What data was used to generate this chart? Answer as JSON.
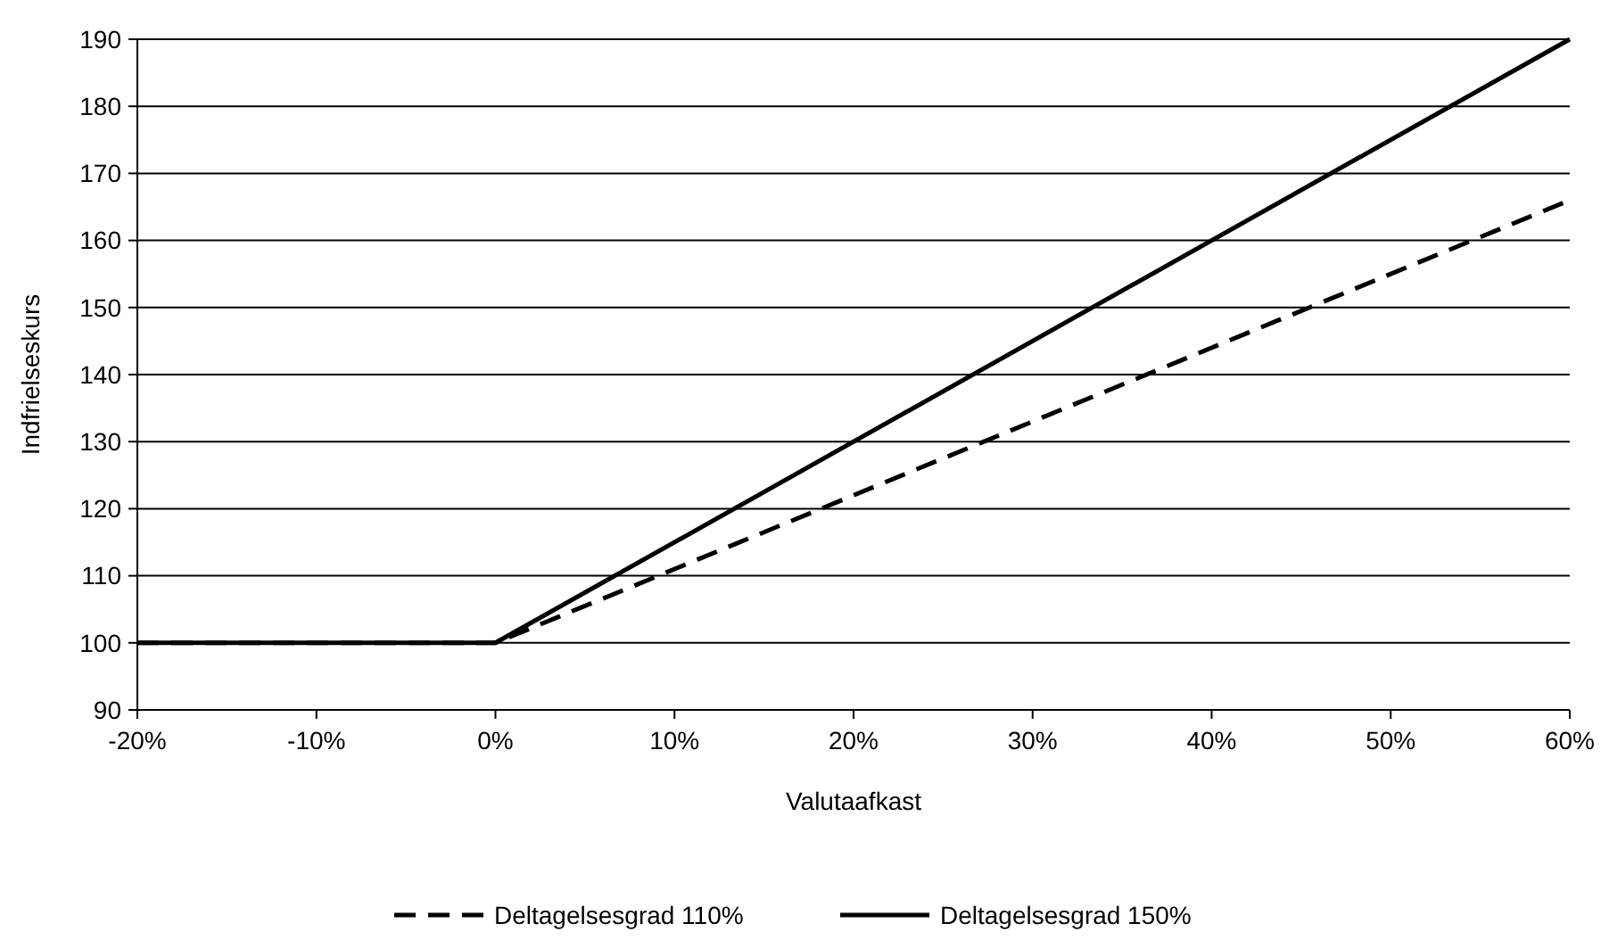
{
  "chart_data": {
    "type": "line",
    "xlabel": "Valutaafkast",
    "ylabel": "Indfrielseskurs",
    "x": [
      -20,
      0,
      60
    ],
    "series": [
      {
        "name": "Deltagelsesgrad 110%",
        "color": "#000000",
        "line_style": "dashed",
        "values": [
          100,
          100,
          166
        ]
      },
      {
        "name": "Deltagelsesgrad 150%",
        "color": "#000000",
        "line_style": "solid",
        "values": [
          100,
          100,
          190
        ]
      }
    ],
    "xlim": [
      -20,
      60
    ],
    "xticks": [
      {
        "value": -20,
        "label": "-20%"
      },
      {
        "value": -10,
        "label": "-10%"
      },
      {
        "value": 0,
        "label": "0%"
      },
      {
        "value": 10,
        "label": "10%"
      },
      {
        "value": 20,
        "label": "20%"
      },
      {
        "value": 30,
        "label": "30%"
      },
      {
        "value": 40,
        "label": "40%"
      },
      {
        "value": 50,
        "label": "50%"
      },
      {
        "value": 60,
        "label": "60%"
      }
    ],
    "ylim": [
      90,
      190
    ],
    "yticks": [
      90,
      100,
      110,
      120,
      130,
      140,
      150,
      160,
      170,
      180,
      190
    ],
    "grid": "y",
    "legend": "bottom",
    "marker": "none"
  }
}
